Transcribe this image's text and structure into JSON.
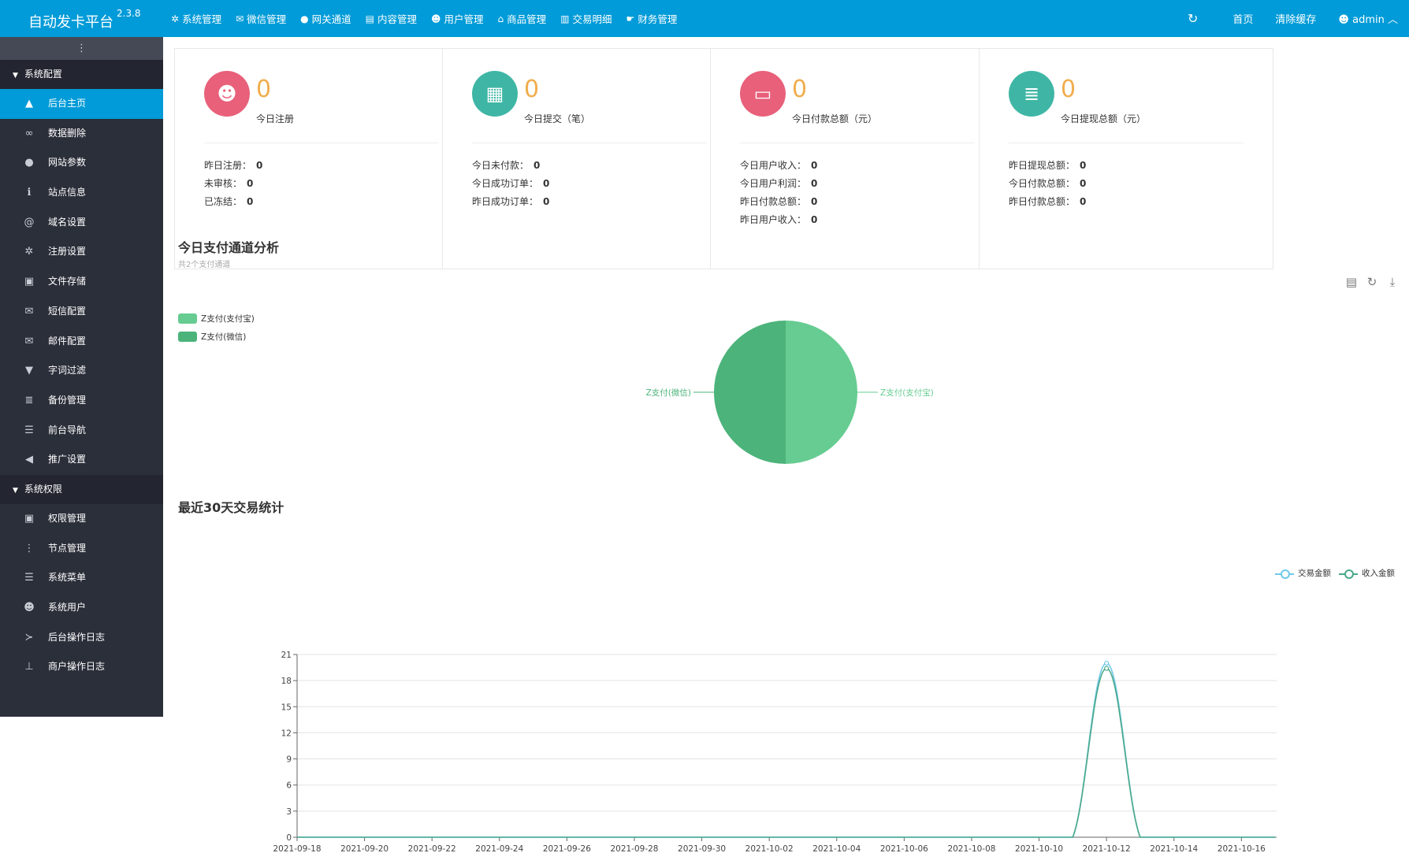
{
  "app": {
    "title": "自动发卡平台",
    "version": "2.3.8"
  },
  "topnav": [
    {
      "icon": "gear-icon",
      "glyph": "✲",
      "label": "系统管理"
    },
    {
      "icon": "wechat-icon",
      "glyph": "✉",
      "label": "微信管理"
    },
    {
      "icon": "gateway-icon",
      "glyph": "●",
      "label": "网关通道"
    },
    {
      "icon": "file-icon",
      "glyph": "▤",
      "label": "内容管理"
    },
    {
      "icon": "users-icon",
      "glyph": "☻",
      "label": "用户管理"
    },
    {
      "icon": "shop-icon",
      "glyph": "⌂",
      "label": "商品管理"
    },
    {
      "icon": "bar-chart-icon",
      "glyph": "▥",
      "label": "交易明细"
    },
    {
      "icon": "hand-icon",
      "glyph": "☛",
      "label": "财务管理"
    }
  ],
  "topright": {
    "home": "首页",
    "clear_cache": "清除缓存",
    "user": "admin"
  },
  "sidebar": {
    "toggle_glyph": "⋮",
    "group1": "系统配置",
    "group1_items": [
      {
        "icon": "area-chart-icon",
        "glyph": "▲",
        "label": "后台主页",
        "active": true
      },
      {
        "icon": "link-icon",
        "glyph": "∞",
        "label": "数据删除"
      },
      {
        "icon": "apple-icon",
        "glyph": "●",
        "label": "网站参数"
      },
      {
        "icon": "info-icon",
        "glyph": "ℹ",
        "label": "站点信息"
      },
      {
        "icon": "at-icon",
        "glyph": "@",
        "label": "域名设置"
      },
      {
        "icon": "cog-icon",
        "glyph": "✲",
        "label": "注册设置"
      },
      {
        "icon": "save-icon",
        "glyph": "▣",
        "label": "文件存储"
      },
      {
        "icon": "envelope-icon",
        "glyph": "✉",
        "label": "短信配置"
      },
      {
        "icon": "envelope-icon",
        "glyph": "✉",
        "label": "邮件配置"
      },
      {
        "icon": "filter-icon",
        "glyph": "▼",
        "label": "字词过滤"
      },
      {
        "icon": "database-icon",
        "glyph": "≣",
        "label": "备份管理"
      },
      {
        "icon": "bars-icon",
        "glyph": "☰",
        "label": "前台导航"
      },
      {
        "icon": "bullhorn-icon",
        "glyph": "◀",
        "label": "推广设置"
      }
    ],
    "group2": "系统权限",
    "group2_items": [
      {
        "icon": "lock-icon",
        "glyph": "▣",
        "label": "权限管理"
      },
      {
        "icon": "node-icon",
        "glyph": "⋮",
        "label": "节点管理"
      },
      {
        "icon": "bars-icon",
        "glyph": "☰",
        "label": "系统菜单"
      },
      {
        "icon": "users-icon",
        "glyph": "☻",
        "label": "系统用户"
      },
      {
        "icon": "terminal-icon",
        "glyph": "≻",
        "label": "后台操作日志"
      },
      {
        "icon": "pin-icon",
        "glyph": "⊥",
        "label": "商户操作日志"
      }
    ]
  },
  "cards": [
    {
      "icon": "users-icon",
      "glyph": "☻",
      "color": "#e8607a",
      "value": "0",
      "label": "今日注册",
      "rows": [
        {
          "k": "昨日注册：",
          "v": "0"
        },
        {
          "k": "未审核：",
          "v": "0"
        },
        {
          "k": "已冻结：",
          "v": "0"
        }
      ]
    },
    {
      "icon": "calendar-icon",
      "glyph": "▦",
      "color": "#3fb6a5",
      "value": "0",
      "label": "今日提交（笔）",
      "rows": [
        {
          "k": "今日未付款：",
          "v": "0"
        },
        {
          "k": "今日成功订单：",
          "v": "0"
        },
        {
          "k": "昨日成功订单：",
          "v": "0"
        }
      ]
    },
    {
      "icon": "credit-card-icon",
      "glyph": "▭",
      "color": "#e8607a",
      "value": "0",
      "label": "今日付款总额（元）",
      "rows": [
        {
          "k": "今日用户收入：",
          "v": "0"
        },
        {
          "k": "今日用户利润：",
          "v": "0"
        },
        {
          "k": "昨日付款总额：",
          "v": "0"
        },
        {
          "k": "昨日用户收入：",
          "v": "0"
        }
      ]
    },
    {
      "icon": "database-icon",
      "glyph": "≣",
      "color": "#3fb6a5",
      "value": "0",
      "label": "今日提现总额（元）",
      "rows": [
        {
          "k": "昨日提现总额：",
          "v": "0"
        },
        {
          "k": "今日付款总额：",
          "v": "0"
        },
        {
          "k": "昨日付款总额：",
          "v": "0"
        }
      ]
    }
  ],
  "pie_section": {
    "title": "今日支付通道分析",
    "subtitle": "共2个支付通道"
  },
  "line_section": {
    "title": "最近30天交易统计"
  },
  "toolbox": [
    {
      "icon": "data-view-icon",
      "glyph": "▤"
    },
    {
      "icon": "refresh-icon",
      "glyph": "↻"
    },
    {
      "icon": "download-icon",
      "glyph": "⤓"
    }
  ],
  "chart_data": [
    {
      "type": "pie",
      "title": "今日支付通道分析",
      "subtitle": "共2个支付通道",
      "legend_position": "top-left",
      "slices": [
        {
          "name": "Z支付(支付宝)",
          "value": 1,
          "color": "#66cc91"
        },
        {
          "name": "Z支付(微信)",
          "value": 1,
          "color": "#4cb37a"
        }
      ]
    },
    {
      "type": "line",
      "title": "最近30天交易统计",
      "legend_position": "top-right",
      "grid": true,
      "ylim": [
        0,
        21
      ],
      "yticks": [
        0,
        3,
        6,
        9,
        12,
        15,
        18,
        21
      ],
      "x": [
        "2021-09-18",
        "2021-09-19",
        "2021-09-20",
        "2021-09-21",
        "2021-09-22",
        "2021-09-23",
        "2021-09-24",
        "2021-09-25",
        "2021-09-26",
        "2021-09-27",
        "2021-09-28",
        "2021-09-29",
        "2021-09-30",
        "2021-10-01",
        "2021-10-02",
        "2021-10-03",
        "2021-10-04",
        "2021-10-05",
        "2021-10-06",
        "2021-10-07",
        "2021-10-08",
        "2021-10-09",
        "2021-10-10",
        "2021-10-11",
        "2021-10-12",
        "2021-10-13",
        "2021-10-14",
        "2021-10-15",
        "2021-10-16",
        "2021-10-17"
      ],
      "xticks": [
        "2021-09-18",
        "2021-09-20",
        "2021-09-22",
        "2021-09-24",
        "2021-09-26",
        "2021-09-28",
        "2021-09-30",
        "2021-10-02",
        "2021-10-04",
        "2021-10-06",
        "2021-10-08",
        "2021-10-10",
        "2021-10-12",
        "2021-10-14",
        "2021-10-16"
      ],
      "series": [
        {
          "name": "交易金额",
          "color": "#6fc9e8",
          "values": [
            0,
            0,
            0,
            0,
            0,
            0,
            0,
            0,
            0,
            0,
            0,
            0,
            0,
            0,
            0,
            0,
            0,
            0,
            0,
            0,
            0,
            0,
            0,
            0,
            20,
            0,
            0,
            0,
            0,
            0
          ]
        },
        {
          "name": "收入金额",
          "color": "#4aa889",
          "values": [
            0,
            0,
            0,
            0,
            0,
            0,
            0,
            0,
            0,
            0,
            0,
            0,
            0,
            0,
            0,
            0,
            0,
            0,
            0,
            0,
            0,
            0,
            0,
            0,
            19.4,
            0,
            0,
            0,
            0,
            0
          ]
        }
      ]
    }
  ]
}
